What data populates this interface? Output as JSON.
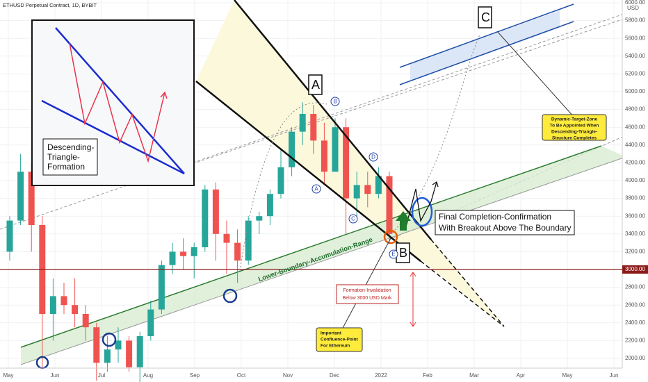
{
  "chart_data": {
    "type": "candlestick",
    "title": "ETHUSD Perpetual Contract, 1D, BYBIT",
    "currency": "USD",
    "months": [
      "May",
      "Jun",
      "Jul",
      "Aug",
      "Sep",
      "Oct",
      "Nov",
      "Dec",
      "2022",
      "Feb",
      "Mar",
      "Apr",
      "May",
      "Jun"
    ],
    "candles": {
      "open": [
        3200,
        3550,
        4100,
        3500,
        2500,
        2700,
        2600,
        2500,
        2350,
        1950,
        2100,
        2200,
        1900,
        2250,
        2550,
        3050,
        3200,
        3150,
        3250,
        3900,
        3400,
        3300,
        3100,
        3550,
        3600,
        3850,
        4150,
        4550,
        4750,
        4450,
        4100,
        4600,
        3800,
        3950,
        3850,
        4050
      ],
      "high": [
        3600,
        4300,
        4200,
        3600,
        2900,
        2850,
        2900,
        2600,
        2400,
        2250,
        2350,
        2250,
        2300,
        2650,
        3100,
        3300,
        3350,
        3300,
        3950,
        3980,
        3550,
        3450,
        3600,
        3650,
        3900,
        4350,
        4600,
        4880,
        4850,
        4650,
        4700,
        4700,
        4100,
        4100,
        4150,
        4100
      ],
      "low": [
        3100,
        3500,
        3200,
        1900,
        2200,
        2500,
        2350,
        2200,
        1750,
        1850,
        1950,
        1850,
        1720,
        2200,
        2500,
        2950,
        3000,
        2900,
        3200,
        3100,
        2950,
        2850,
        3050,
        3400,
        3500,
        3800,
        4050,
        4400,
        4300,
        3950,
        4100,
        3400,
        3600,
        3700,
        3800,
        3300
      ],
      "close": [
        3550,
        4100,
        3500,
        2500,
        2700,
        2600,
        2500,
        2350,
        1950,
        2100,
        2200,
        1900,
        2250,
        2550,
        3050,
        3200,
        3150,
        3250,
        3900,
        3400,
        3300,
        3100,
        3550,
        3600,
        3850,
        4150,
        4550,
        4750,
        4450,
        4100,
        4600,
        3800,
        3950,
        3850,
        4050,
        3400
      ]
    },
    "up_color": "#26a69a",
    "down_color": "#ef5350",
    "ylim": [
      2000,
      6000
    ],
    "yticks": [
      {
        "value": 2000,
        "label": "2000.00"
      },
      {
        "value": 2200,
        "label": "2200.00"
      },
      {
        "value": 2400,
        "label": "2400.00"
      },
      {
        "value": 2600,
        "label": "2600.00"
      },
      {
        "value": 2800,
        "label": "2800.00"
      },
      {
        "value": 3200,
        "label": "3200.00"
      },
      {
        "value": 3400,
        "label": "3400.00"
      },
      {
        "value": 3600,
        "label": "3600.00"
      },
      {
        "value": 3800,
        "label": "3800.00"
      },
      {
        "value": 4000,
        "label": "4000.00"
      },
      {
        "value": 4200,
        "label": "4200.00"
      },
      {
        "value": 4400,
        "label": "4400.00"
      },
      {
        "value": 4600,
        "label": "4600.00"
      },
      {
        "value": 4800,
        "label": "4800.00"
      },
      {
        "value": 5000,
        "label": "5000.00"
      },
      {
        "value": 5200,
        "label": "5200.00"
      },
      {
        "value": 5400,
        "label": "5400.00"
      },
      {
        "value": 5600,
        "label": "5600.00"
      },
      {
        "value": 5800,
        "label": "5800.00"
      },
      {
        "value": 6000,
        "label": "6000.00"
      }
    ],
    "grid": true,
    "price_line": {
      "value": 3000,
      "label": "3000.00",
      "color": "#8b1a1a"
    },
    "annotations": {
      "inset_title": [
        "Descending-",
        "Triangle-",
        "Formation"
      ],
      "points": [
        "A",
        "B",
        "C"
      ],
      "waves": [
        "A",
        "B",
        "C",
        "D",
        "E"
      ],
      "confirmation": [
        "Final Completion-Confirmation",
        "With Breakout Above The Boundary"
      ],
      "accumulation": "Lower-Boundary-Accumulation-Range",
      "invalidation": [
        "Formation-Invalidation",
        "Below 3000 USD Mark"
      ],
      "confluence": [
        "Important",
        "Confluence-Point",
        "For Ethereum"
      ],
      "target": [
        "Dynamic-Target-Zone",
        "To Be Appointed When",
        "Descending-Triangle-",
        "Structure Completes"
      ]
    }
  }
}
